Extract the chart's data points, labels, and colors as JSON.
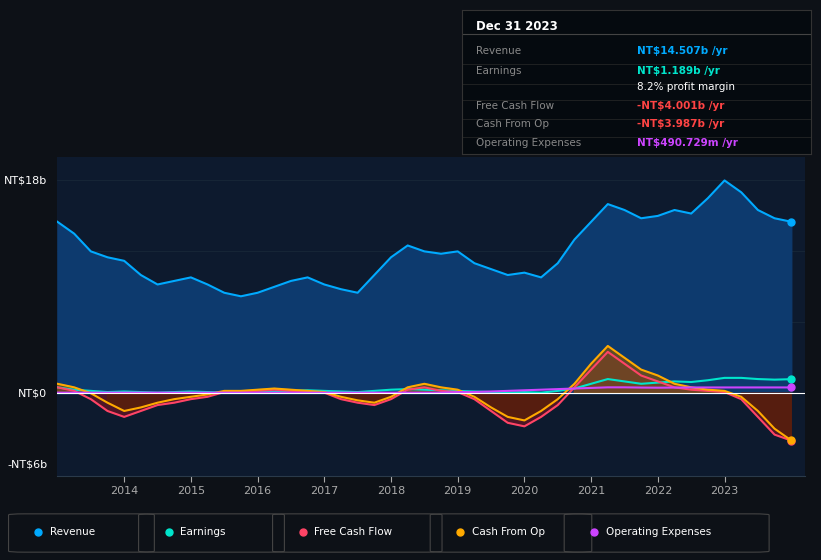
{
  "bg_color": "#0d1117",
  "chart_bg": "#0d1a2e",
  "y_label_top": "NT$18b",
  "y_label_mid": "NT$0",
  "y_label_bot": "-NT$6b",
  "years": [
    2013.0,
    2013.25,
    2013.5,
    2013.75,
    2014.0,
    2014.25,
    2014.5,
    2014.75,
    2015.0,
    2015.25,
    2015.5,
    2015.75,
    2016.0,
    2016.25,
    2016.5,
    2016.75,
    2017.0,
    2017.25,
    2017.5,
    2017.75,
    2018.0,
    2018.25,
    2018.5,
    2018.75,
    2019.0,
    2019.25,
    2019.5,
    2019.75,
    2020.0,
    2020.25,
    2020.5,
    2020.75,
    2021.0,
    2021.25,
    2021.5,
    2021.75,
    2022.0,
    2022.25,
    2022.5,
    2022.75,
    2023.0,
    2023.25,
    2023.5,
    2023.75,
    2024.0
  ],
  "revenue": [
    14.5,
    13.5,
    12.0,
    11.5,
    11.2,
    10.0,
    9.2,
    9.5,
    9.8,
    9.2,
    8.5,
    8.2,
    8.5,
    9.0,
    9.5,
    9.8,
    9.2,
    8.8,
    8.5,
    10.0,
    11.5,
    12.5,
    12.0,
    11.8,
    12.0,
    11.0,
    10.5,
    10.0,
    10.2,
    9.8,
    11.0,
    13.0,
    14.5,
    16.0,
    15.5,
    14.8,
    15.0,
    15.5,
    15.2,
    16.5,
    18.0,
    17.0,
    15.5,
    14.8,
    14.507
  ],
  "earnings": [
    0.5,
    0.3,
    0.2,
    0.1,
    0.15,
    0.1,
    0.05,
    0.1,
    0.15,
    0.1,
    0.05,
    0.05,
    0.1,
    0.15,
    0.2,
    0.25,
    0.2,
    0.15,
    0.1,
    0.2,
    0.3,
    0.35,
    0.3,
    0.25,
    0.2,
    0.15,
    0.1,
    0.05,
    0.1,
    0.05,
    0.2,
    0.4,
    0.8,
    1.2,
    1.0,
    0.8,
    0.9,
    1.0,
    0.95,
    1.1,
    1.3,
    1.3,
    1.2,
    1.15,
    1.189
  ],
  "free_cash_flow": [
    0.5,
    0.2,
    -0.5,
    -1.5,
    -2.0,
    -1.5,
    -1.0,
    -0.8,
    -0.5,
    -0.3,
    0.1,
    0.1,
    0.2,
    0.3,
    0.2,
    0.1,
    0.05,
    -0.5,
    -0.8,
    -1.0,
    -0.5,
    0.3,
    0.5,
    0.2,
    0.1,
    -0.5,
    -1.5,
    -2.5,
    -2.8,
    -2.0,
    -1.0,
    0.5,
    2.0,
    3.5,
    2.5,
    1.5,
    1.0,
    0.5,
    0.3,
    0.2,
    0.1,
    -0.5,
    -2.0,
    -3.5,
    -4.001
  ],
  "cash_from_op": [
    0.8,
    0.5,
    0.0,
    -0.8,
    -1.5,
    -1.2,
    -0.8,
    -0.5,
    -0.3,
    -0.1,
    0.2,
    0.2,
    0.3,
    0.4,
    0.3,
    0.2,
    0.1,
    -0.3,
    -0.6,
    -0.8,
    -0.3,
    0.5,
    0.8,
    0.5,
    0.3,
    -0.3,
    -1.2,
    -2.0,
    -2.3,
    -1.5,
    -0.5,
    0.8,
    2.5,
    4.0,
    3.0,
    2.0,
    1.5,
    0.8,
    0.5,
    0.3,
    0.2,
    -0.3,
    -1.5,
    -3.0,
    -3.987
  ],
  "op_expenses": [
    0.05,
    0.05,
    0.05,
    0.05,
    0.05,
    0.05,
    0.05,
    0.05,
    0.05,
    0.05,
    0.05,
    0.05,
    0.05,
    0.05,
    0.05,
    0.05,
    0.05,
    0.05,
    0.05,
    0.05,
    0.05,
    0.05,
    0.05,
    0.05,
    0.1,
    0.1,
    0.15,
    0.2,
    0.25,
    0.3,
    0.35,
    0.4,
    0.45,
    0.5,
    0.5,
    0.48,
    0.47,
    0.48,
    0.49,
    0.49,
    0.49,
    0.491,
    0.491,
    0.491,
    0.491
  ],
  "revenue_color": "#00aaff",
  "earnings_color": "#00e5cc",
  "fcf_color": "#ff4466",
  "cash_op_color": "#ffaa00",
  "op_exp_color": "#cc44ff",
  "revenue_fill": "#0d3a6e",
  "zero_line_color": "#ffffff",
  "grid_color": "#1a2a3a",
  "tick_color": "#aaaaaa",
  "legend_items": [
    "Revenue",
    "Earnings",
    "Free Cash Flow",
    "Cash From Op",
    "Operating Expenses"
  ],
  "legend_colors": [
    "#00aaff",
    "#00e5cc",
    "#ff4466",
    "#ffaa00",
    "#cc44ff"
  ],
  "info_box": {
    "title": "Dec 31 2023",
    "rows": [
      {
        "label": "Revenue",
        "value": "NT$14.507b /yr",
        "value_color": "#00aaff"
      },
      {
        "label": "Earnings",
        "value": "NT$1.189b /yr",
        "value_color": "#00e5cc"
      },
      {
        "label": "",
        "value": "8.2% profit margin",
        "value_color": "#ffffff"
      },
      {
        "label": "Free Cash Flow",
        "value": "-NT$4.001b /yr",
        "value_color": "#ff4444"
      },
      {
        "label": "Cash From Op",
        "value": "-NT$3.987b /yr",
        "value_color": "#ff4444"
      },
      {
        "label": "Operating Expenses",
        "value": "NT$490.729m /yr",
        "value_color": "#cc44ff"
      }
    ]
  }
}
